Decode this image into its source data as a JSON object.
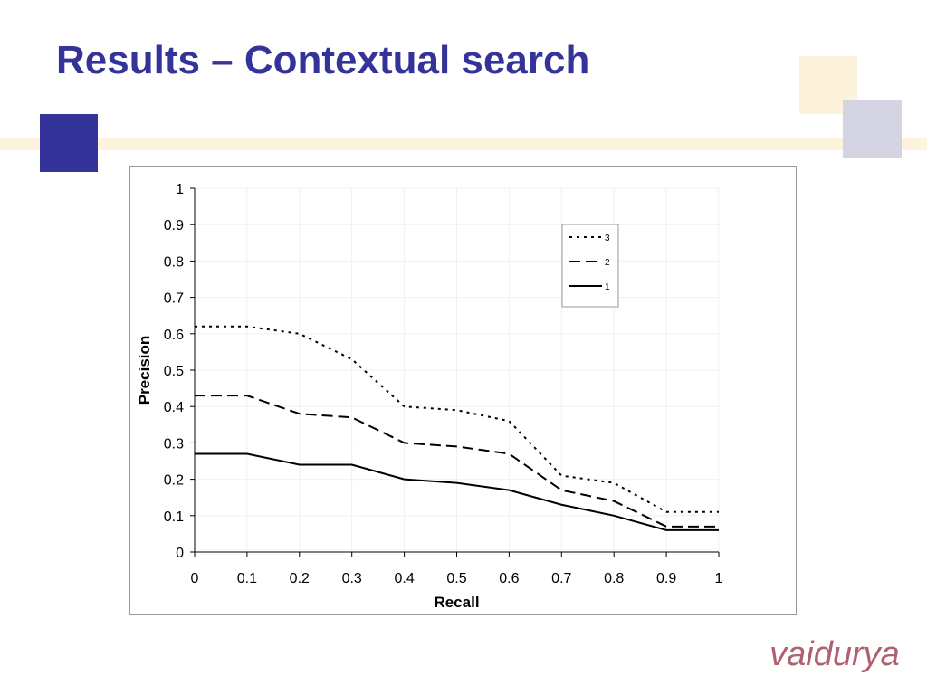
{
  "slide_title": "Results – Contextual search",
  "logo": "vaidurya",
  "chart_data": {
    "type": "line",
    "x": [
      0,
      0.1,
      0.2,
      0.3,
      0.4,
      0.5,
      0.6,
      0.7,
      0.8,
      0.9,
      1
    ],
    "series": [
      {
        "name": "3",
        "color": "#000000",
        "dash": "dotted",
        "values": [
          0.62,
          0.62,
          0.6,
          0.53,
          0.4,
          0.39,
          0.36,
          0.21,
          0.19,
          0.11,
          0.11
        ]
      },
      {
        "name": "2",
        "color": "#000000",
        "dash": "dashed",
        "values": [
          0.43,
          0.43,
          0.38,
          0.37,
          0.3,
          0.29,
          0.27,
          0.17,
          0.14,
          0.07,
          0.07
        ]
      },
      {
        "name": "1",
        "color": "#000000",
        "dash": "solid",
        "values": [
          0.27,
          0.27,
          0.24,
          0.24,
          0.2,
          0.19,
          0.17,
          0.13,
          0.1,
          0.06,
          0.06
        ]
      }
    ],
    "xlabel": "Recall",
    "ylabel": "Precision",
    "xlim": [
      0,
      1
    ],
    "ylim": [
      0,
      1
    ],
    "xticks": [
      0,
      0.1,
      0.2,
      0.3,
      0.4,
      0.5,
      0.6,
      0.7,
      0.8,
      0.9,
      1
    ],
    "yticks": [
      0,
      0.1,
      0.2,
      0.3,
      0.4,
      0.5,
      0.6,
      0.7,
      0.8,
      0.9,
      1
    ],
    "grid": true,
    "legend": "upper right"
  }
}
